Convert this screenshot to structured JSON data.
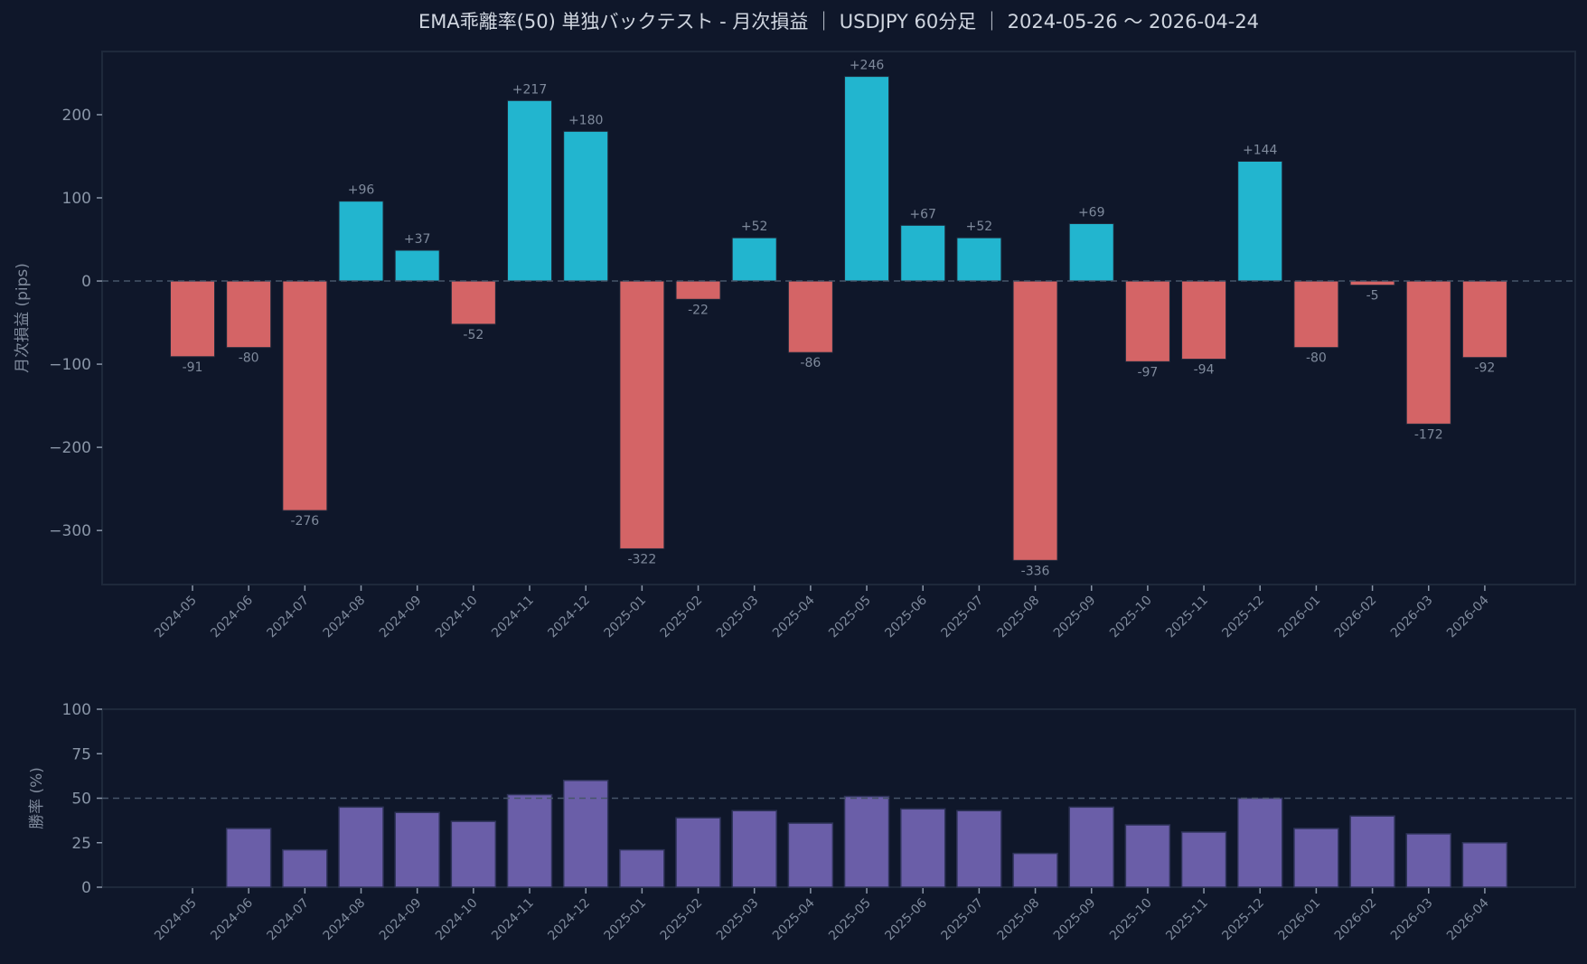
{
  "title": "EMA乖離率(50) 単独バックテスト - 月次損益 ｜ USDJPY 60分足 ｜ 2024-05-26 〜 2026-04-24",
  "colors": {
    "background": "#0f172a",
    "axes_border": "#1e293b",
    "positive": "#22b5cf",
    "negative": "#d46466",
    "winrate": "#6a5ea8",
    "refline": "#475569",
    "tick_text": "#8a96a8"
  },
  "chart_data": [
    {
      "type": "bar",
      "title": "EMA乖離率(50) 単独バックテスト - 月次損益 ｜ USDJPY 60分足 ｜ 2024-05-26 〜 2026-04-24",
      "xlabel": "",
      "ylabel": "月次損益 (pips)",
      "ylim": [
        -365,
        276
      ],
      "yticks": [
        -300,
        -200,
        -100,
        0,
        100,
        200
      ],
      "ytick_labels": [
        "−300",
        "−200",
        "−100",
        "0",
        "100",
        "200"
      ],
      "grid": false,
      "reference_line": {
        "y": 0,
        "style": "dashed"
      },
      "categories": [
        "2024-05",
        "2024-06",
        "2024-07",
        "2024-08",
        "2024-09",
        "2024-10",
        "2024-11",
        "2024-12",
        "2025-01",
        "2025-02",
        "2025-03",
        "2025-04",
        "2025-05",
        "2025-06",
        "2025-07",
        "2025-08",
        "2025-09",
        "2025-10",
        "2025-11",
        "2025-12",
        "2026-01",
        "2026-02",
        "2026-03",
        "2026-04"
      ],
      "values": [
        -91,
        -80,
        -276,
        96,
        37,
        -52,
        217,
        180,
        -322,
        -22,
        52,
        -86,
        246,
        67,
        52,
        -336,
        69,
        -97,
        -94,
        144,
        -80,
        -5,
        -172,
        -92
      ],
      "value_labels": [
        "-91",
        "-80",
        "-276",
        "+96",
        "+37",
        "-52",
        "+217",
        "+180",
        "-322",
        "-22",
        "+52",
        "-86",
        "+246",
        "+67",
        "+52",
        "-336",
        "+69",
        "-97",
        "-94",
        "+144",
        "-80",
        "-5",
        "-172",
        "-92"
      ]
    },
    {
      "type": "bar",
      "title": "",
      "xlabel": "",
      "ylabel": "勝率 (%)",
      "ylim": [
        0,
        100
      ],
      "yticks": [
        0,
        25,
        50,
        75,
        100
      ],
      "ytick_labels": [
        "0",
        "25",
        "50",
        "75",
        "100"
      ],
      "grid": false,
      "reference_line": {
        "y": 50,
        "style": "dashed"
      },
      "categories": [
        "2024-05",
        "2024-06",
        "2024-07",
        "2024-08",
        "2024-09",
        "2024-10",
        "2024-11",
        "2024-12",
        "2025-01",
        "2025-02",
        "2025-03",
        "2025-04",
        "2025-05",
        "2025-06",
        "2025-07",
        "2025-08",
        "2025-09",
        "2025-10",
        "2025-11",
        "2025-12",
        "2026-01",
        "2026-02",
        "2026-03",
        "2026-04"
      ],
      "values": [
        0,
        33,
        21,
        45,
        42,
        37,
        52,
        60,
        21,
        39,
        43,
        36,
        51,
        44,
        43,
        19,
        45,
        35,
        31,
        50,
        33,
        40,
        30,
        25
      ]
    }
  ]
}
